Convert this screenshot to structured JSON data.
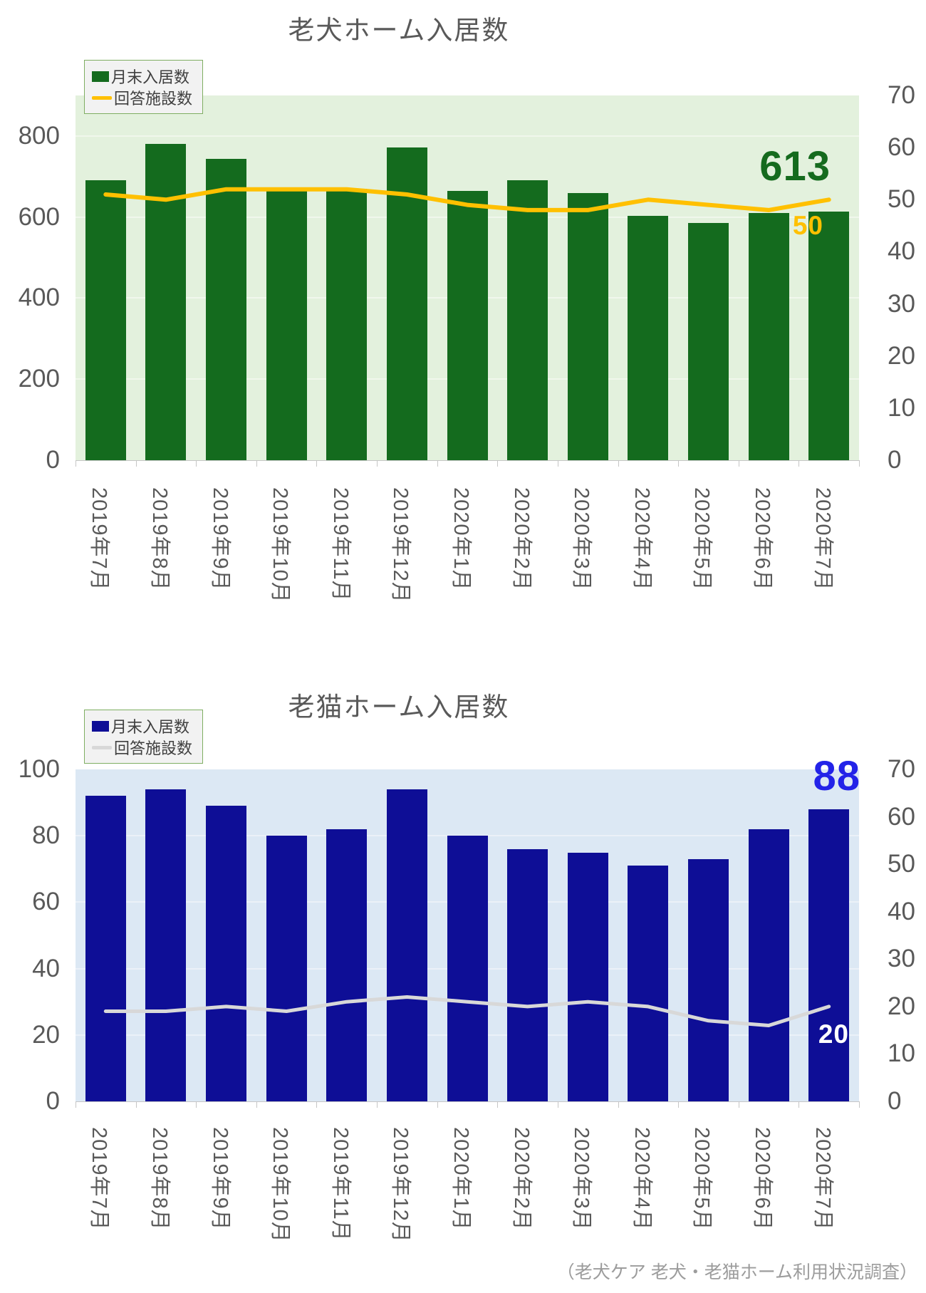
{
  "page": {
    "footer": "（老犬ケア 老犬・老猫ホーム利用状況調査）"
  },
  "chart_data": [
    {
      "type": "bar",
      "title": "老犬ホーム入居数",
      "categories": [
        "2019年7月",
        "2019年8月",
        "2019年9月",
        "2019年10月",
        "2019年11月",
        "2019年12月",
        "2020年1月",
        "2020年2月",
        "2020年3月",
        "2020年4月",
        "2020年5月",
        "2020年6月",
        "2020年7月"
      ],
      "series": [
        {
          "name": "月末入居数",
          "type": "bar",
          "axis": "left",
          "color": "#146b1e",
          "values": [
            690,
            780,
            744,
            670,
            670,
            772,
            665,
            690,
            660,
            603,
            585,
            610,
            613
          ]
        },
        {
          "name": "回答施設数",
          "type": "line",
          "axis": "right",
          "color": "#ffc000",
          "values": [
            51,
            50,
            52,
            52,
            52,
            51,
            49,
            48,
            48,
            50,
            49,
            48,
            50
          ]
        }
      ],
      "left_axis": {
        "min": 0,
        "max": 900,
        "ticks": [
          800,
          600,
          400,
          200,
          0
        ]
      },
      "right_axis": {
        "min": 0,
        "max": 70,
        "ticks": [
          70,
          60,
          50,
          40,
          30,
          20,
          10,
          0
        ]
      },
      "plot_bg": "#e3f1dd",
      "gridline_color": "#f0f7ec",
      "grid": true,
      "legend_position": "top-left",
      "end_labels": [
        {
          "text": "613",
          "series": "bar",
          "color": "#156b1e"
        },
        {
          "text": "50",
          "series": "line",
          "color": "#ffc000"
        }
      ]
    },
    {
      "type": "bar",
      "title": "老猫ホーム入居数",
      "categories": [
        "2019年7月",
        "2019年8月",
        "2019年9月",
        "2019年10月",
        "2019年11月",
        "2019年12月",
        "2020年1月",
        "2020年2月",
        "2020年3月",
        "2020年4月",
        "2020年5月",
        "2020年6月",
        "2020年7月"
      ],
      "series": [
        {
          "name": "月末入居数",
          "type": "bar",
          "axis": "left",
          "color": "#0e0e96",
          "values": [
            92,
            94,
            89,
            80,
            82,
            94,
            80,
            76,
            75,
            71,
            73,
            82,
            88
          ]
        },
        {
          "name": "回答施設数",
          "type": "line",
          "axis": "right",
          "color": "#d8d8d8",
          "values": [
            19,
            19,
            20,
            19,
            21,
            22,
            21,
            20,
            21,
            20,
            17,
            16,
            20
          ]
        }
      ],
      "left_axis": {
        "min": 0,
        "max": 100,
        "ticks": [
          100,
          80,
          60,
          40,
          20,
          0
        ]
      },
      "right_axis": {
        "min": 0,
        "max": 70,
        "ticks": [
          70,
          60,
          50,
          40,
          30,
          20,
          10,
          0
        ]
      },
      "plot_bg": "#dce8f4",
      "gridline_color": "#ebf1f8",
      "grid": true,
      "legend_position": "top-left",
      "end_labels": [
        {
          "text": "88",
          "series": "bar",
          "color": "#2323e8"
        },
        {
          "text": "20",
          "series": "line",
          "color": "#ffffff"
        }
      ]
    }
  ]
}
